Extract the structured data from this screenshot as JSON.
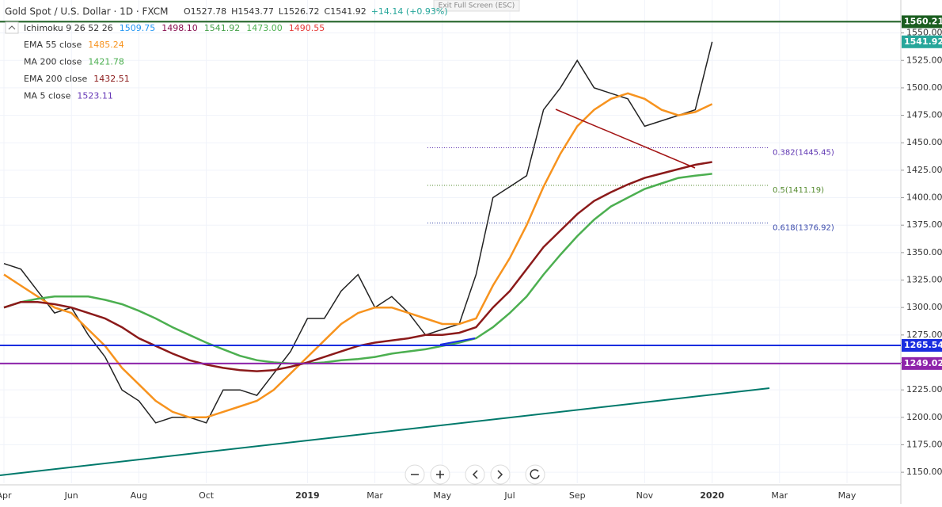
{
  "exit_fullscreen": "Exit Full Screen (ESC)",
  "chart_data": {
    "type": "line",
    "title": "Gold Spot / U.S. Dollar · 1D · FXCM",
    "quote": [
      "O1527.78",
      "H1543.77",
      "L1526.72",
      "C1541.92",
      "+14.14 (+0.93%)"
    ],
    "ichimoku": {
      "name": "Ichimoku 9 26 52 26",
      "values": [
        "1509.75",
        "1498.10",
        "1541.92",
        "1473.00",
        "1490.55"
      ],
      "colors": [
        "#2196f3",
        "#880e4f",
        "#43a047",
        "#4caf50",
        "#e53935"
      ]
    },
    "extra_legend": {
      "name": "MA 5 close",
      "value": 1523.11,
      "color": "#673ab7"
    },
    "categories": [
      "Apr",
      null,
      null,
      null,
      "Jun",
      null,
      null,
      null,
      "Aug",
      null,
      null,
      null,
      "Oct",
      null,
      null,
      null,
      null,
      null,
      "2019",
      null,
      null,
      null,
      "Mar",
      null,
      null,
      null,
      "May",
      null,
      null,
      null,
      "Jul",
      null,
      null,
      null,
      "Sep",
      null,
      null,
      null,
      "Nov",
      null,
      null,
      null,
      "2020",
      null,
      null,
      null,
      "Mar",
      null,
      null,
      null,
      "May",
      null
    ],
    "series": [
      {
        "color": "#222222",
        "values": [
          1340,
          1335,
          1315,
          1295,
          1300,
          1275,
          1255,
          1225,
          1215,
          1195,
          1200,
          1200,
          1195,
          1225,
          1225,
          1220,
          1240,
          1260,
          1290,
          1290,
          1315,
          1330,
          1300,
          1310,
          1295,
          1275,
          1280,
          1285,
          1330,
          1400,
          1410,
          1420,
          1480,
          1500,
          1525,
          1500,
          1495,
          1490,
          1465,
          1470,
          1475,
          1480,
          1541.92,
          null,
          null,
          null,
          null,
          null,
          null,
          null,
          null,
          null
        ]
      },
      {
        "name": "EMA 55 close",
        "color": "#f7931e",
        "values": [
          1330,
          1320,
          1310,
          1300,
          1295,
          1280,
          1265,
          1245,
          1230,
          1215,
          1205,
          1200,
          1200,
          1205,
          1210,
          1215,
          1225,
          1240,
          1255,
          1270,
          1285,
          1295,
          1300,
          1300,
          1295,
          1290,
          1285,
          1285,
          1290,
          1320,
          1345,
          1375,
          1410,
          1440,
          1465,
          1480,
          1490,
          1495,
          1490,
          1480,
          1475,
          1478,
          1485.24,
          null,
          null,
          null,
          null,
          null,
          null,
          null,
          null,
          null
        ]
      },
      {
        "name": "MA 200 close",
        "color": "#4caf50",
        "values": [
          1300,
          1305,
          1308,
          1310,
          1310,
          1310,
          1307,
          1303,
          1297,
          1290,
          1282,
          1275,
          1268,
          1262,
          1256,
          1252,
          1250,
          1249,
          1249,
          1250,
          1252,
          1253,
          1255,
          1258,
          1260,
          1262,
          1265,
          1268,
          1272,
          1282,
          1295,
          1310,
          1330,
          1348,
          1365,
          1380,
          1392,
          1400,
          1408,
          1413,
          1418,
          1420,
          1421.78,
          null,
          null,
          null,
          null,
          null,
          null,
          null,
          null,
          null
        ]
      },
      {
        "name": "EMA 200 close",
        "color": "#8b1a1a",
        "values": [
          1300,
          1305,
          1305,
          1303,
          1300,
          1295,
          1290,
          1282,
          1272,
          1265,
          1258,
          1252,
          1248,
          1245,
          1243,
          1242,
          1243,
          1246,
          1250,
          1255,
          1260,
          1265,
          1268,
          1270,
          1272,
          1275,
          1275,
          1277,
          1282,
          1300,
          1315,
          1335,
          1355,
          1370,
          1385,
          1397,
          1405,
          1412,
          1418,
          1422,
          1426,
          1430,
          1432.51,
          null,
          null,
          null,
          null,
          null,
          null,
          null,
          null,
          null
        ]
      }
    ],
    "levels": [
      {
        "value": 1560.21,
        "color": "#1b5e20"
      },
      {
        "value": 1265.54,
        "color": "#1a2ee0"
      },
      {
        "value": 1249.02,
        "color": "#8e24aa"
      }
    ],
    "fib_levels": [
      {
        "value": 1445.45,
        "label": "0.382(1445.45)",
        "color": "#5e35b1"
      },
      {
        "value": 1411.19,
        "label": "0.5(1411.19)",
        "color": "#558b2f"
      },
      {
        "value": 1376.92,
        "label": "0.618(1376.92)",
        "color": "#3949ab"
      }
    ],
    "ylim": [
      1140,
      1580
    ],
    "yticks": [
      {
        "value": 1150,
        "label": "1150.00"
      },
      {
        "value": 1175,
        "label": "1175.00"
      },
      {
        "value": 1200,
        "label": "1200.00"
      },
      {
        "value": 1225,
        "label": "1225.00"
      },
      {
        "value": 1250,
        "label": "1250.00"
      },
      {
        "value": 1275,
        "label": "1275.00"
      },
      {
        "value": 1300,
        "label": "1300.00"
      },
      {
        "value": 1325,
        "label": "1325.00"
      },
      {
        "value": 1350,
        "label": "1350.00"
      },
      {
        "value": 1375,
        "label": "1375.00"
      },
      {
        "value": 1400,
        "label": "1400.00"
      },
      {
        "value": 1425,
        "label": "1425.00"
      },
      {
        "value": 1450,
        "label": "1450.00"
      },
      {
        "value": 1475,
        "label": "1475.00"
      },
      {
        "value": 1500,
        "label": "1500.00"
      },
      {
        "value": 1525,
        "label": "1525.00"
      },
      {
        "value": 1550,
        "label": "1550.00"
      }
    ]
  }
}
